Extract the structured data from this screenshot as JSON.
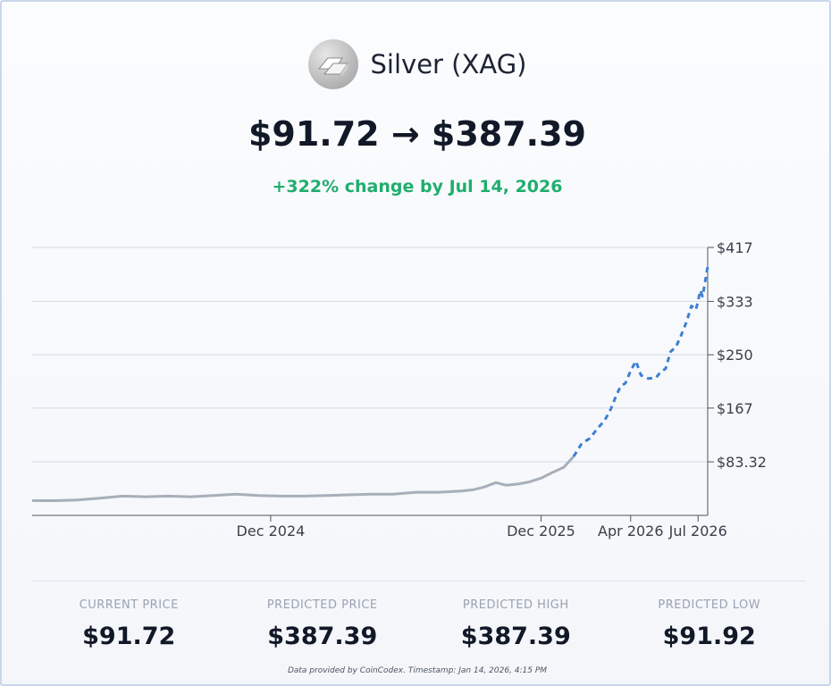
{
  "asset": {
    "name": "Silver (XAG)",
    "price_range": "$91.72 → $387.39",
    "change_text": "+322% change by Jul 14, 2026",
    "change_color": "#1fae6e",
    "logo_icon": "silver-bars-icon"
  },
  "chart_data": {
    "type": "line",
    "title": "",
    "xlabel": "",
    "ylabel": "",
    "ylim": [
      0,
      417
    ],
    "y_ticks": [
      83.32,
      167,
      250,
      333,
      417
    ],
    "y_tick_labels": [
      "$83.32",
      "$167",
      "$250",
      "$333",
      "$417"
    ],
    "x_ticks": [
      "2024-12-01",
      "2025-12-01",
      "2026-04-01",
      "2026-07-01"
    ],
    "x_tick_labels": [
      "Dec 2024",
      "Dec 2025",
      "Apr 2026",
      "Jul 2026"
    ],
    "xlim": [
      "2024-01-14",
      "2026-07-14"
    ],
    "grid": true,
    "series": [
      {
        "style": "historical",
        "color": "#a7afba",
        "x": [
          "2024-01-14",
          "2024-02-15",
          "2024-03-15",
          "2024-04-15",
          "2024-05-15",
          "2024-06-15",
          "2024-07-15",
          "2024-08-15",
          "2024-09-15",
          "2024-10-15",
          "2024-11-15",
          "2024-12-15",
          "2025-01-15",
          "2025-02-15",
          "2025-03-15",
          "2025-04-15",
          "2025-05-15",
          "2025-06-15",
          "2025-07-15",
          "2025-08-15",
          "2025-09-01",
          "2025-09-15",
          "2025-10-01",
          "2025-10-15",
          "2025-11-01",
          "2025-11-15",
          "2025-12-01",
          "2025-12-15",
          "2026-01-01",
          "2026-01-14"
        ],
        "y": [
          23,
          23,
          24,
          27,
          30,
          29,
          30,
          29,
          31,
          33,
          31,
          30,
          30,
          31,
          32,
          33,
          33,
          36,
          36,
          38,
          40,
          44,
          51,
          47,
          49,
          52,
          58,
          66,
          75,
          91.72
        ]
      },
      {
        "style": "predicted",
        "color": "#3f7fd1",
        "x": [
          "2026-01-14",
          "2026-01-25",
          "2026-02-05",
          "2026-02-15",
          "2026-02-25",
          "2026-03-05",
          "2026-03-12",
          "2026-03-18",
          "2026-03-25",
          "2026-04-01",
          "2026-04-08",
          "2026-04-15",
          "2026-04-25",
          "2026-05-05",
          "2026-05-12",
          "2026-05-18",
          "2026-05-25",
          "2026-06-01",
          "2026-06-08",
          "2026-06-15",
          "2026-06-22",
          "2026-06-28",
          "2026-07-01",
          "2026-07-04",
          "2026-07-07",
          "2026-07-10",
          "2026-07-14"
        ],
        "y": [
          91.72,
          112,
          120,
          135,
          148,
          165,
          185,
          200,
          206,
          225,
          240,
          218,
          213,
          214,
          224,
          228,
          255,
          262,
          280,
          300,
          326,
          320,
          333,
          350,
          341,
          360,
          387.39
        ]
      }
    ]
  },
  "stats": [
    {
      "label": "CURRENT PRICE",
      "value": "$91.72"
    },
    {
      "label": "PREDICTED PRICE",
      "value": "$387.39"
    },
    {
      "label": "PREDICTED HIGH",
      "value": "$387.39"
    },
    {
      "label": "PREDICTED LOW",
      "value": "$91.92"
    }
  ],
  "footer": "Data provided by CoinCodex. Timestamp: Jan 14, 2026, 4:15 PM"
}
